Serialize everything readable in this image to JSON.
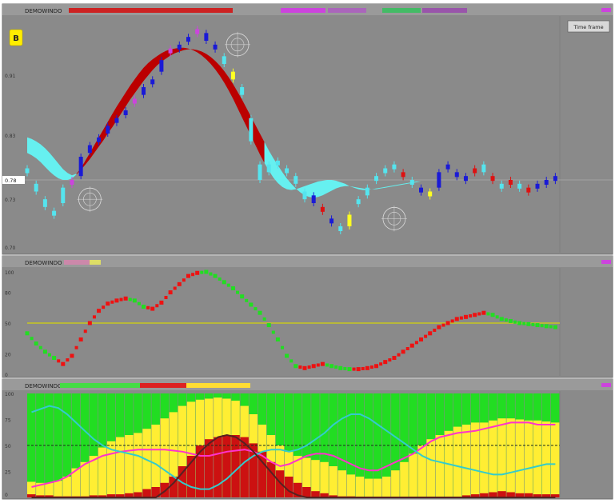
{
  "colors": {
    "panel_bg": "#8a8a8a",
    "hist_red": "#cc1111",
    "hist_yellow": "#ffee33",
    "hist_green": "#22dd22",
    "ribbon_cyan": "#66f0f0",
    "ribbon_red": "#bb0000",
    "candle_blue": "#1a1ad6",
    "candle_cyan": "#55e4ee",
    "candle_red": "#dd1111",
    "candle_yellow": "#ffff22",
    "candle_magenta": "#cc44dd",
    "osc_red": "#ee1111",
    "osc_green": "#22dd22",
    "signal_yellow": "#c8c820",
    "line_magenta": "#ff33cc",
    "line_cyan": "#33cccc",
    "line_dark": "#552222",
    "header_text": "#222222"
  },
  "header": {
    "panel_labels": [
      "DEMOWINDO",
      "DEMOWINDO",
      "DEMOWINDO"
    ],
    "badge": "B",
    "button_label": "Time frame"
  },
  "chart_data": [
    {
      "type": "candlestick",
      "panel": "price",
      "yaxis_ticks": [
        "0.91",
        "0.83",
        "0.73",
        "0.70"
      ],
      "price_label": "0.78",
      "x": [
        0,
        1,
        2,
        3,
        4,
        5,
        6,
        7,
        8,
        9,
        10,
        11,
        12,
        13,
        14,
        15,
        16,
        17,
        18,
        19,
        20,
        21,
        22,
        23,
        24,
        25,
        26,
        27,
        28,
        29,
        30,
        31,
        32,
        33,
        34,
        35,
        36,
        37,
        38,
        39,
        40,
        41,
        42,
        43,
        44,
        45,
        46,
        47,
        48,
        49,
        50,
        51,
        52,
        53,
        54,
        55,
        56,
        57,
        58,
        59,
        60,
        61,
        62,
        63,
        64,
        65,
        66,
        67,
        68,
        69,
        70,
        71,
        72,
        73,
        74,
        75,
        76,
        77,
        78,
        79,
        80,
        81,
        82,
        83,
        84,
        85,
        86,
        87,
        88,
        89,
        90,
        91,
        92,
        93,
        94,
        95,
        96,
        97,
        98,
        99,
        100,
        101,
        102,
        103,
        104,
        105,
        106,
        107,
        108,
        109,
        110,
        111,
        112,
        113,
        114,
        115,
        116,
        117,
        118,
        119
      ],
      "close": [
        0.79,
        0.775,
        0.765,
        0.745,
        0.755,
        0.74,
        0.735,
        0.75,
        0.77,
        0.78,
        0.775,
        0.785,
        0.81,
        0.815,
        0.825,
        0.83,
        0.835,
        0.84,
        0.85,
        0.855,
        0.86,
        0.865,
        0.87,
        0.88,
        0.885,
        0.89,
        0.9,
        0.905,
        0.91,
        0.92,
        0.935,
        0.945,
        0.95,
        0.955,
        0.955,
        0.96,
        0.965,
        0.97,
        0.975,
        0.97,
        0.96,
        0.955,
        0.95,
        0.94,
        0.93,
        0.92,
        0.91,
        0.9,
        0.89,
        0.86,
        0.83,
        0.8,
        0.78,
        0.79,
        0.8,
        0.805,
        0.8,
        0.795,
        0.79,
        0.785,
        0.775,
        0.765,
        0.755,
        0.76,
        0.75,
        0.74,
        0.745,
        0.73,
        0.725,
        0.72,
        0.715,
        0.72,
        0.735,
        0.75,
        0.755,
        0.76,
        0.77,
        0.78,
        0.785,
        0.79,
        0.795,
        0.8,
        0.795,
        0.79,
        0.785,
        0.78,
        0.775,
        0.77,
        0.765,
        0.76,
        0.765,
        0.77,
        0.79,
        0.795,
        0.8,
        0.79,
        0.785,
        0.78,
        0.785,
        0.79,
        0.795,
        0.8,
        0.79,
        0.785,
        0.78,
        0.775,
        0.77,
        0.775,
        0.78,
        0.775,
        0.77,
        0.765,
        0.77,
        0.775,
        0.77,
        0.78,
        0.775,
        0.78,
        0.785,
        0.79
      ],
      "open": [
        0.795,
        0.79,
        0.775,
        0.765,
        0.745,
        0.755,
        0.74,
        0.735,
        0.75,
        0.77,
        0.78,
        0.775,
        0.785,
        0.81,
        0.815,
        0.825,
        0.83,
        0.835,
        0.84,
        0.85,
        0.855,
        0.86,
        0.865,
        0.87,
        0.88,
        0.885,
        0.89,
        0.9,
        0.905,
        0.91,
        0.92,
        0.935,
        0.945,
        0.95,
        0.955,
        0.955,
        0.96,
        0.965,
        0.97,
        0.975,
        0.97,
        0.96,
        0.955,
        0.95,
        0.94,
        0.93,
        0.92,
        0.91,
        0.9,
        0.89,
        0.86,
        0.83,
        0.8,
        0.78,
        0.79,
        0.8,
        0.805,
        0.8,
        0.795,
        0.79,
        0.785,
        0.775,
        0.765,
        0.755,
        0.76,
        0.75,
        0.74,
        0.745,
        0.73,
        0.725,
        0.72,
        0.715,
        0.72,
        0.735,
        0.75,
        0.755,
        0.76,
        0.77,
        0.78,
        0.785,
        0.79,
        0.795,
        0.8,
        0.795,
        0.79,
        0.785,
        0.78,
        0.775,
        0.77,
        0.765,
        0.76,
        0.765,
        0.77,
        0.79,
        0.795,
        0.8,
        0.79,
        0.785,
        0.78,
        0.785,
        0.79,
        0.795,
        0.8,
        0.79,
        0.785,
        0.78,
        0.775,
        0.77,
        0.775,
        0.78,
        0.775,
        0.77,
        0.765,
        0.77,
        0.775,
        0.77,
        0.78,
        0.775,
        0.78,
        0.785
      ],
      "ribbon_upper": [
        0.835,
        0.833,
        0.83,
        0.826,
        0.821,
        0.815,
        0.808,
        0.801,
        0.794,
        0.789,
        0.786,
        0.788,
        0.795,
        0.805,
        0.815,
        0.825,
        0.835,
        0.845,
        0.855,
        0.865,
        0.875,
        0.884,
        0.893,
        0.902,
        0.91,
        0.918,
        0.925,
        0.931,
        0.936,
        0.94,
        0.944,
        0.947,
        0.949,
        0.95,
        0.951,
        0.951,
        0.95,
        0.948,
        0.945,
        0.941,
        0.936,
        0.93,
        0.923,
        0.915,
        0.906,
        0.896,
        0.885,
        0.873,
        0.861,
        0.849,
        0.837,
        0.825,
        0.813,
        0.802,
        0.792,
        0.783,
        0.776,
        0.771,
        0.768,
        0.767,
        0.768,
        0.77,
        0.772,
        0.774,
        0.776,
        0.778,
        0.779,
        0.78,
        0.78,
        0.779,
        0.777,
        0.775,
        0.772,
        0.77,
        0.768,
        0.767,
        0.767,
        0.768,
        0.769,
        0.77,
        0.771,
        0.772,
        0.773,
        0.774,
        0.775,
        0.776,
        0.777,
        0.778,
        0.778,
        0.778,
        0.778,
        0.778,
        0.778,
        0.778,
        0.778,
        0.778,
        0.778,
        0.778,
        0.778,
        0.778,
        0.778,
        0.778,
        0.778,
        0.778,
        0.778,
        0.778,
        0.778,
        0.778,
        0.778,
        0.778,
        0.778,
        0.778,
        0.778,
        0.778,
        0.778,
        0.778,
        0.778,
        0.778,
        0.778,
        0.778
      ],
      "ribbon_lower": [
        0.815,
        0.812,
        0.808,
        0.803,
        0.797,
        0.791,
        0.786,
        0.782,
        0.78,
        0.78,
        0.782,
        0.787,
        0.793,
        0.8,
        0.807,
        0.815,
        0.823,
        0.831,
        0.84,
        0.848,
        0.857,
        0.866,
        0.875,
        0.884,
        0.892,
        0.9,
        0.908,
        0.915,
        0.922,
        0.928,
        0.933,
        0.937,
        0.941,
        0.944,
        0.946,
        0.948,
        0.949,
        0.949,
        0.948,
        0.946,
        0.943,
        0.939,
        0.934,
        0.928,
        0.921,
        0.913,
        0.904,
        0.894,
        0.884,
        0.873,
        0.862,
        0.851,
        0.84,
        0.829,
        0.818,
        0.808,
        0.799,
        0.79,
        0.782,
        0.775,
        0.769,
        0.764,
        0.76,
        0.758,
        0.757,
        0.758,
        0.76,
        0.763,
        0.766,
        0.769,
        0.771,
        0.772,
        0.772,
        0.771,
        0.77,
        0.769,
        0.768,
        0.768,
        0.768,
        0.769,
        0.77,
        0.771,
        0.772,
        0.773,
        0.774,
        0.775,
        0.776,
        0.777,
        0.778,
        0.778,
        0.778,
        0.778,
        0.778,
        0.778,
        0.778,
        0.778,
        0.778,
        0.778,
        0.778,
        0.778,
        0.778,
        0.778,
        0.778,
        0.778,
        0.778,
        0.778,
        0.778,
        0.778,
        0.778,
        0.778,
        0.778,
        0.778,
        0.778,
        0.778,
        0.778,
        0.778,
        0.778,
        0.778,
        0.778,
        0.778
      ]
    },
    {
      "type": "line",
      "panel": "oscillator",
      "yaxis_ticks": [
        "100",
        "80",
        "50",
        "20",
        "0"
      ],
      "ylim": [
        0,
        100
      ],
      "signal_level": 50,
      "x": [
        0,
        2,
        4,
        6,
        8,
        10,
        12,
        14,
        16,
        18,
        20,
        22,
        24,
        26,
        28,
        30,
        32,
        34,
        36,
        38,
        40,
        42,
        44,
        46,
        48,
        50,
        52,
        54,
        56,
        58,
        60,
        62,
        64,
        66,
        68,
        70,
        72,
        74,
        76,
        78,
        80,
        82,
        84,
        86,
        88,
        90,
        92,
        94,
        96,
        98,
        100,
        102,
        104,
        106,
        108,
        110,
        112,
        114,
        116,
        118
      ],
      "values": [
        40,
        30,
        22,
        16,
        10,
        18,
        34,
        50,
        62,
        69,
        72,
        74,
        72,
        66,
        64,
        70,
        80,
        88,
        96,
        99,
        100,
        96,
        90,
        84,
        76,
        68,
        60,
        48,
        34,
        18,
        8,
        6,
        8,
        10,
        8,
        6,
        5,
        5,
        6,
        8,
        12,
        16,
        22,
        28,
        34,
        40,
        46,
        50,
        54,
        56,
        58,
        60,
        58,
        54,
        52,
        50,
        49,
        48,
        47,
        46
      ],
      "direction": [
        "g",
        "g",
        "g",
        "g",
        "r",
        "r",
        "r",
        "r",
        "r",
        "r",
        "r",
        "r",
        "g",
        "g",
        "r",
        "r",
        "r",
        "r",
        "r",
        "r",
        "g",
        "g",
        "g",
        "g",
        "g",
        "g",
        "g",
        "g",
        "g",
        "g",
        "g",
        "r",
        "r",
        "r",
        "g",
        "g",
        "g",
        "r",
        "r",
        "r",
        "r",
        "r",
        "r",
        "r",
        "r",
        "r",
        "r",
        "r",
        "r",
        "r",
        "r",
        "r",
        "g",
        "g",
        "g",
        "g",
        "g",
        "g",
        "g",
        "g"
      ]
    },
    {
      "type": "bar",
      "panel": "histogram",
      "yaxis_ticks": [
        "100",
        "75",
        "50",
        "25",
        "0"
      ],
      "ylim": [
        0,
        100
      ],
      "x": [
        0,
        2,
        4,
        6,
        8,
        10,
        12,
        14,
        16,
        18,
        20,
        22,
        24,
        26,
        28,
        30,
        32,
        34,
        36,
        38,
        40,
        42,
        44,
        46,
        48,
        50,
        52,
        54,
        56,
        58,
        60,
        62,
        64,
        66,
        68,
        70,
        72,
        74,
        76,
        78,
        80,
        82,
        84,
        86,
        88,
        90,
        92,
        94,
        96,
        98,
        100,
        102,
        104,
        106,
        108,
        110,
        112,
        114,
        116,
        118
      ],
      "red": [
        3,
        2,
        2,
        1,
        1,
        1,
        1,
        2,
        2,
        3,
        3,
        4,
        5,
        8,
        10,
        14,
        20,
        30,
        40,
        50,
        56,
        58,
        60,
        60,
        58,
        52,
        44,
        34,
        26,
        20,
        14,
        10,
        6,
        4,
        2,
        1,
        1,
        0,
        0,
        0,
        0,
        0,
        0,
        0,
        0,
        0,
        0,
        0,
        0,
        2,
        3,
        4,
        5,
        6,
        5,
        4,
        4,
        3,
        3,
        3
      ],
      "yellow": [
        15,
        14,
        14,
        16,
        20,
        28,
        34,
        40,
        48,
        54,
        58,
        60,
        62,
        66,
        70,
        76,
        82,
        88,
        92,
        94,
        95,
        96,
        95,
        93,
        88,
        80,
        70,
        60,
        50,
        44,
        40,
        38,
        36,
        34,
        30,
        26,
        22,
        20,
        18,
        18,
        20,
        26,
        34,
        42,
        50,
        56,
        60,
        64,
        68,
        70,
        72,
        72,
        74,
        76,
        76,
        75,
        74,
        74,
        73,
        72
      ],
      "green": [
        100,
        100,
        100,
        100,
        100,
        100,
        100,
        100,
        100,
        100,
        100,
        100,
        100,
        100,
        100,
        100,
        100,
        100,
        100,
        100,
        100,
        100,
        100,
        100,
        100,
        100,
        100,
        100,
        100,
        100,
        100,
        100,
        100,
        100,
        100,
        100,
        100,
        100,
        100,
        100,
        100,
        100,
        100,
        100,
        100,
        100,
        100,
        100,
        100,
        100,
        100,
        100,
        100,
        100,
        100,
        100,
        100,
        100,
        100,
        100
      ],
      "lines": [
        {
          "color_key": "line_magenta",
          "values": [
            10,
            12,
            14,
            16,
            20,
            26,
            32,
            36,
            40,
            42,
            44,
            45,
            46,
            46,
            46,
            46,
            45,
            44,
            42,
            40,
            40,
            42,
            44,
            45,
            46,
            44,
            40,
            34,
            30,
            32,
            36,
            40,
            42,
            42,
            40,
            36,
            32,
            28,
            26,
            26,
            30,
            34,
            38,
            42,
            48,
            54,
            58,
            60,
            62,
            63,
            64,
            66,
            68,
            70,
            72,
            72,
            72,
            70,
            70,
            70
          ]
        },
        {
          "color_key": "line_cyan",
          "values": [
            82,
            85,
            88,
            86,
            80,
            72,
            64,
            56,
            50,
            46,
            44,
            42,
            40,
            36,
            32,
            26,
            20,
            14,
            10,
            8,
            8,
            12,
            18,
            26,
            34,
            40,
            44,
            46,
            46,
            44,
            46,
            50,
            56,
            62,
            70,
            76,
            80,
            80,
            76,
            70,
            64,
            58,
            52,
            46,
            40,
            36,
            34,
            32,
            30,
            28,
            26,
            24,
            22,
            22,
            24,
            26,
            28,
            30,
            32,
            32
          ]
        },
        {
          "color_key": "line_dark",
          "values": [
            0,
            0,
            0,
            0,
            0,
            0,
            0,
            0,
            0,
            0,
            0,
            0,
            0,
            0,
            0,
            6,
            14,
            24,
            34,
            44,
            52,
            58,
            60,
            58,
            52,
            44,
            34,
            24,
            14,
            6,
            2,
            0,
            0,
            0,
            0,
            0,
            0,
            0,
            0,
            0,
            0,
            0,
            0,
            0,
            0,
            0,
            0,
            0,
            0,
            0,
            0,
            0,
            0,
            0,
            0,
            0,
            0,
            0,
            0,
            0
          ]
        }
      ]
    }
  ]
}
